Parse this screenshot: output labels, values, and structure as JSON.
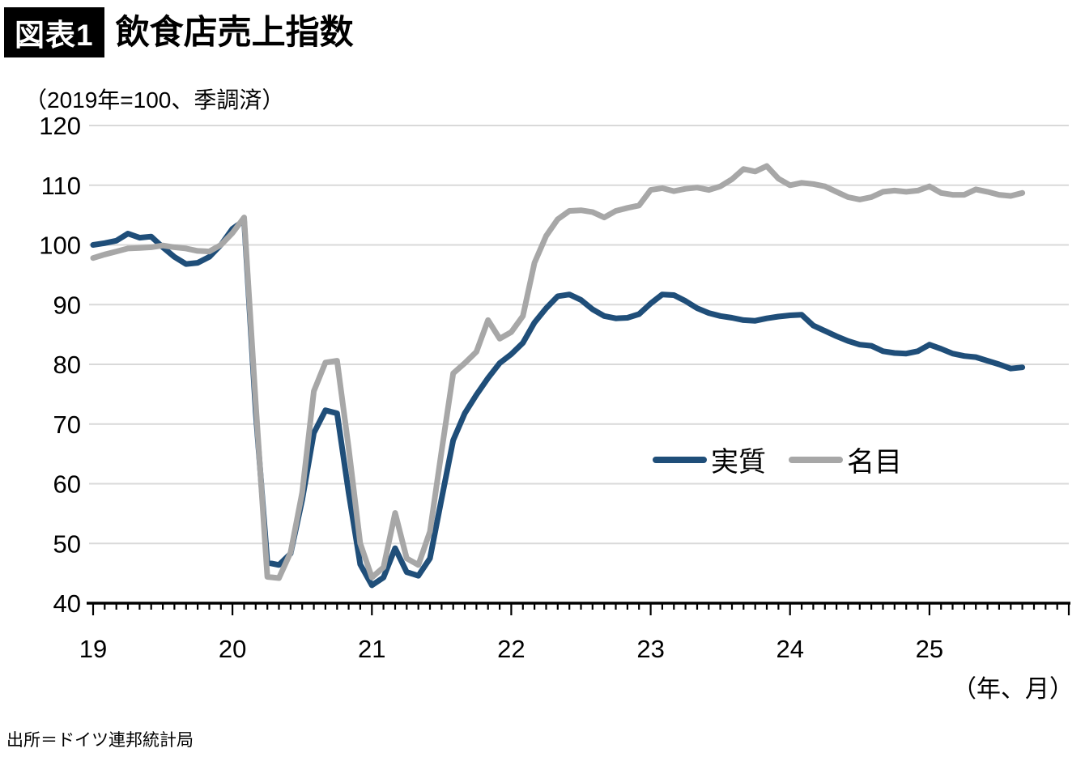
{
  "title": {
    "badge": "図表1",
    "text": "飲食店売上指数"
  },
  "subtitle": "（2019年=100、季調済）",
  "axis_unit": "（年、月）",
  "source": "出所＝ドイツ連邦統計局",
  "legend": [
    {
      "label": "実質",
      "color": "#1F4E79"
    },
    {
      "label": "名目",
      "color": "#A7A7A7"
    }
  ],
  "chart_data": {
    "type": "line",
    "title": "飲食店売上指数",
    "note": "（2019年=100、季調済）",
    "x_start": "2019-01",
    "x_end": "2025-09",
    "x_frequency": "monthly",
    "x_tick_labels": [
      "19",
      "20",
      "21",
      "22",
      "23",
      "24",
      "25"
    ],
    "xlabel": "（年、月）",
    "y_ticks": [
      40,
      50,
      60,
      70,
      80,
      90,
      100,
      110,
      120
    ],
    "ylim": [
      40,
      120
    ],
    "grid": "horizontal",
    "legend_position": "inside-right-middle",
    "colors": {
      "grid": "#D9D9D9",
      "axis": "#000000"
    },
    "series": [
      {
        "name": "実質",
        "key": "real",
        "color": "#1F4E79",
        "values": [
          100.0,
          100.3,
          100.7,
          101.9,
          101.2,
          101.4,
          99.6,
          98.0,
          96.8,
          97.0,
          98.0,
          100.0,
          102.7,
          104.1,
          72.0,
          46.8,
          46.4,
          48.3,
          57.3,
          68.5,
          72.3,
          71.8,
          58.5,
          46.5,
          43.0,
          44.3,
          49.2,
          45.2,
          44.6,
          47.5,
          57.5,
          67.3,
          71.8,
          74.9,
          77.7,
          80.2,
          81.7,
          83.6,
          87.0,
          89.4,
          91.4,
          91.7,
          90.8,
          89.2,
          88.1,
          87.7,
          87.8,
          88.4,
          90.2,
          91.7,
          91.6,
          90.6,
          89.4,
          88.6,
          88.1,
          87.8,
          87.4,
          87.3,
          87.7,
          88.0,
          88.2,
          88.3,
          86.5,
          85.6,
          84.7,
          83.9,
          83.3,
          83.1,
          82.2,
          81.9,
          81.8,
          82.2,
          83.3,
          82.6,
          81.8,
          81.4,
          81.2,
          80.6,
          80.0,
          79.3,
          79.5
        ]
      },
      {
        "name": "名目",
        "key": "nominal",
        "color": "#A7A7A7",
        "values": [
          97.8,
          98.4,
          98.9,
          99.4,
          99.5,
          99.6,
          99.9,
          99.6,
          99.4,
          99.0,
          98.9,
          100.0,
          102.0,
          104.6,
          73.5,
          44.4,
          44.2,
          48.5,
          58.5,
          75.5,
          80.3,
          80.6,
          66.0,
          50.0,
          44.3,
          46.0,
          55.1,
          47.5,
          46.4,
          52.0,
          65.5,
          78.5,
          80.2,
          82.1,
          87.4,
          84.3,
          85.4,
          88.1,
          97.0,
          101.5,
          104.3,
          105.7,
          105.8,
          105.5,
          104.6,
          105.7,
          106.2,
          106.6,
          109.2,
          109.5,
          109.0,
          109.4,
          109.6,
          109.2,
          109.8,
          111.0,
          112.7,
          112.3,
          113.2,
          111.1,
          110.0,
          110.4,
          110.2,
          109.8,
          108.9,
          108.0,
          107.6,
          108.0,
          108.9,
          109.1,
          108.9,
          109.1,
          109.8,
          108.7,
          108.4,
          108.4,
          109.3,
          108.9,
          108.4,
          108.2,
          108.7
        ]
      }
    ]
  }
}
